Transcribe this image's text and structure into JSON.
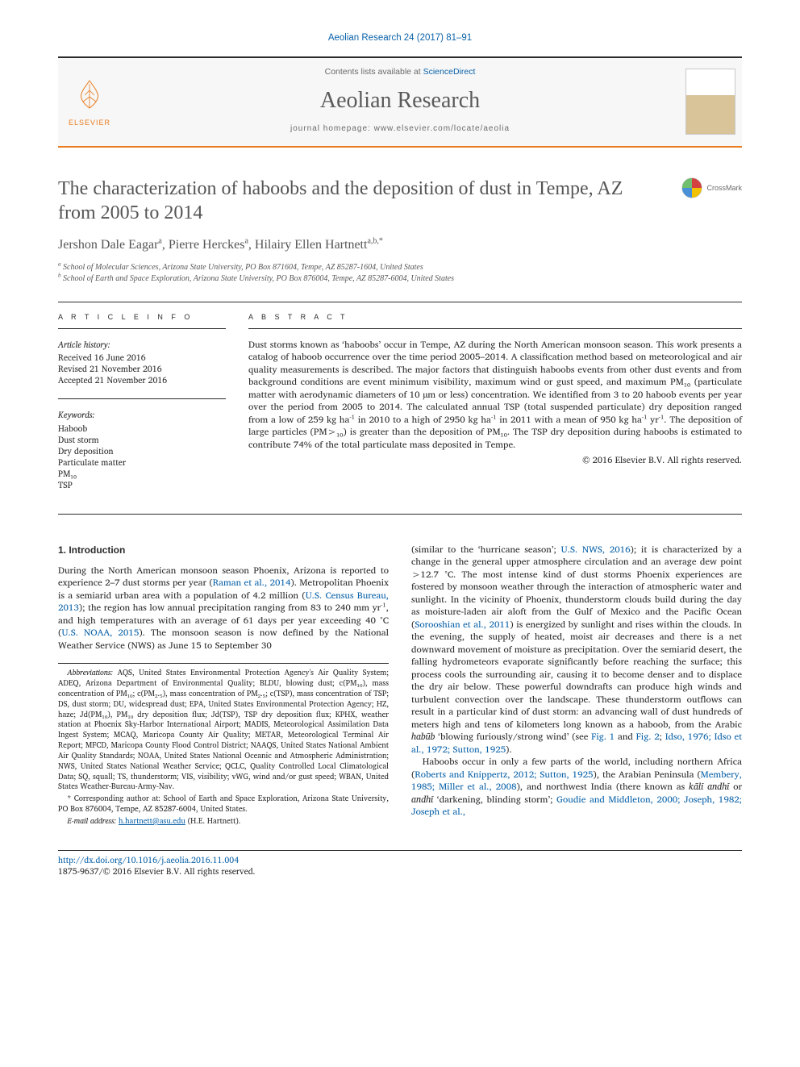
{
  "running_head": "Aeolian Research 24 (2017) 81–91",
  "masthead": {
    "contents_prefix": "Contents lists available at ",
    "contents_link": "ScienceDirect",
    "journal": "Aeolian Research",
    "homepage_prefix": "journal homepage: ",
    "homepage": "www.elsevier.com/locate/aeolia",
    "publisher": "ELSEVIER"
  },
  "crossmark": "CrossMark",
  "article": {
    "title": "The characterization of haboobs and the deposition of dust in Tempe, AZ from 2005 to 2014",
    "authors_html": "Jershon Dale Eagar<sup>a</sup>, Pierre Herckes<sup>a</sup>, Hilairy Ellen Hartnett<sup>a,b,*</sup>",
    "affiliations": {
      "a": "School of Molecular Sciences, Arizona State University, PO Box 871604, Tempe, AZ 85287-1604, United States",
      "b": "School of Earth and Space Exploration, Arizona State University, PO Box 876004, Tempe, AZ 85287-6004, United States"
    }
  },
  "article_info": {
    "heading": "A R T I C L E   I N F O",
    "history_label": "Article history:",
    "received": "Received 16 June 2016",
    "revised": "Revised 21 November 2016",
    "accepted": "Accepted 21 November 2016",
    "keywords_label": "Keywords:",
    "keywords": [
      "Haboob",
      "Dust storm",
      "Dry deposition",
      "Particulate matter",
      "PM₁₀",
      "TSP"
    ]
  },
  "abstract": {
    "heading": "A B S T R A C T",
    "text": "Dust storms known as ‘haboobs’ occur in Tempe, AZ during the North American monsoon season. This work presents a catalog of haboob occurrence over the time period 2005–2014. A classification method based on meteorological and air quality measurements is described. The major factors that distinguish haboobs events from other dust events and from background conditions are event minimum visibility, maximum wind or gust speed, and maximum PM₁₀ (particulate matter with aerodynamic diameters of 10 µm or less) concentration. We identified from 3 to 20 haboob events per year over the period from 2005 to 2014. The calculated annual TSP (total suspended particulate) dry deposition ranged from a low of 259 kg ha⁻¹ in 2010 to a high of 2950 kg ha⁻¹ in 2011 with a mean of 950 kg ha⁻¹ yr⁻¹. The deposition of large particles (PM>₁₀) is greater than the deposition of PM₁₀. The TSP dry deposition during haboobs is estimated to contribute 74% of the total particulate mass deposited in Tempe.",
    "copyright": "© 2016 Elsevier B.V. All rights reserved."
  },
  "intro": {
    "heading": "1. Introduction",
    "p1_a": "During the North American monsoon season Phoenix, Arizona is reported to experience 2–7 dust storms per year (",
    "p1_cite1": "Raman et al., 2014",
    "p1_b": "). Metropolitan Phoenix is a semiarid urban area with a population of 4.2 million (",
    "p1_cite2": "U.S. Census Bureau, 2013",
    "p1_c": "); the region has low annual precipitation ranging from 83 to 240 mm yr⁻¹, and high temperatures with an average of 61 days per year exceeding 40 °C (",
    "p1_cite3": "U.S. NOAA, 2015",
    "p1_d": "). The monsoon season is now defined by the National Weather Service (NWS) as June 15 to September 30",
    "p2_a": "(similar to the ‘hurricane season’; ",
    "p2_cite1": "U.S. NWS, 2016",
    "p2_b": "); it is characterized by a change in the general upper atmosphere circulation and an average dew point >12.7 °C. The most intense kind of dust storms Phoenix experiences are fostered by monsoon weather through the interaction of atmospheric water and sunlight. In the vicinity of Phoenix, thunderstorm clouds build during the day as moisture-laden air aloft from the Gulf of Mexico and the Pacific Ocean (",
    "p2_cite2": "Sorooshian et al., 2011",
    "p2_c": ") is energized by sunlight and rises within the clouds. In the evening, the supply of heated, moist air decreases and there is a net downward movement of moisture as precipitation. Over the semiarid desert, the falling hydrometeors evaporate significantly before reaching the surface; this process cools the surrounding air, causing it to become denser and to displace the dry air below. These powerful downdrafts can produce high winds and turbulent convection over the landscape. These thunderstorm outflows can result in a particular kind of dust storm: an advancing wall of dust hundreds of meters high and tens of kilometers long known as a haboob, from the Arabic ",
    "p2_italic": "habūb",
    "p2_d": " ‘blowing furiously/strong wind’ (see ",
    "p2_cite3": "Fig. 1",
    "p2_e": " and ",
    "p2_cite4": "Fig. 2",
    "p2_f": "; ",
    "p2_cite5": "Idso, 1976; Idso et al., 1972; Sutton, 1925",
    "p2_g": ").",
    "p3_a": "Haboobs occur in only a few parts of the world, including northern Africa (",
    "p3_cite1": "Roberts and Knippertz, 2012; Sutton, 1925",
    "p3_b": "), the Arabian Peninsula (",
    "p3_cite2": "Membery, 1985; Miller et al., 2008",
    "p3_c": "), and northwest India (there known as ",
    "p3_italic": "kālī andhī",
    "p3_d": " or ",
    "p3_italic2": "andhī",
    "p3_e": " ‘darkening, blinding storm’; ",
    "p3_cite3": "Goudie and Middleton, 2000; Joseph, 1982; Joseph et al.,"
  },
  "footnotes": {
    "abbrev_label": "Abbreviations:",
    "abbrev": " AQS, United States Environmental Protection Agency's Air Quality System; ADEQ, Arizona Department of Environmental Quality; BLDU, blowing dust; c(PM₁₀), mass concentration of PM₁₀; c(PM₂.₅), mass concentration of PM₂.₅; c(TSP), mass concentration of TSP; DS, dust storm; DU, widespread dust; EPA, United States Environmental Protection Agency; HZ, haze; Jd(PM₁₀), PM₁₀ dry deposition flux; Jd(TSP), TSP dry deposition flux; KPHX, weather station at Phoenix Sky-Harbor International Airport; MADIS, Meteorological Assimilation Data Ingest System; MCAQ, Maricopa County Air Quality; METAR, Meteorological Terminal Air Report; MFCD, Maricopa County Flood Control District; NAAQS, United States National Ambient Air Quality Standards; NOAA, United States National Oceanic and Atmospheric Administration; NWS, United States National Weather Service; QCLC, Quality Controlled Local Climatological Data; SQ, squall; TS, thunderstorm; VIS, visibility; vWG, wind and/or gust speed; WBAN, United States Weather-Bureau-Army-Nav.",
    "corr_label": "* Corresponding author at:",
    "corr": " School of Earth and Space Exploration, Arizona State University, PO Box 876004, Tempe, AZ 85287-6004, United States.",
    "email_label": "E-mail address:",
    "email": "h.hartnett@asu.edu",
    "email_paren": " (H.E. Hartnett)."
  },
  "footer": {
    "doi": "http://dx.doi.org/10.1016/j.aeolia.2016.11.004",
    "issn_line": "1875-9637/© 2016 Elsevier B.V. All rights reserved."
  },
  "colors": {
    "accent_orange": "#e97c1e",
    "link_blue": "#0a62a9",
    "text_gray": "#555555",
    "muted_gray": "#6a6a6a"
  }
}
